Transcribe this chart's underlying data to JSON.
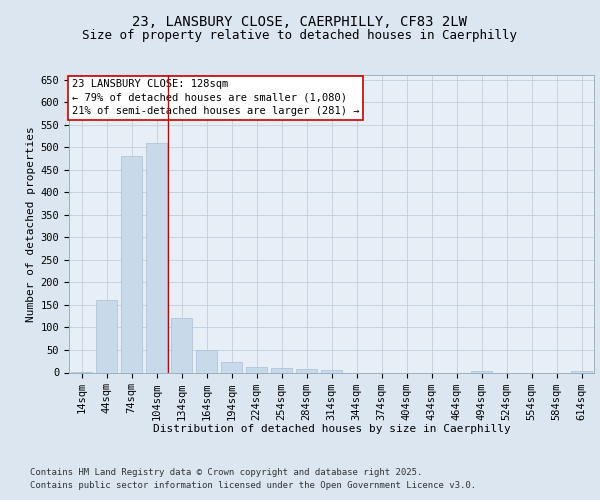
{
  "title_line1": "23, LANSBURY CLOSE, CAERPHILLY, CF83 2LW",
  "title_line2": "Size of property relative to detached houses in Caerphilly",
  "xlabel": "Distribution of detached houses by size in Caerphilly",
  "ylabel": "Number of detached properties",
  "categories": [
    "14sqm",
    "44sqm",
    "74sqm",
    "104sqm",
    "134sqm",
    "164sqm",
    "194sqm",
    "224sqm",
    "254sqm",
    "284sqm",
    "314sqm",
    "344sqm",
    "374sqm",
    "404sqm",
    "434sqm",
    "464sqm",
    "494sqm",
    "524sqm",
    "554sqm",
    "584sqm",
    "614sqm"
  ],
  "values": [
    2,
    160,
    480,
    510,
    120,
    50,
    23,
    13,
    11,
    8,
    5,
    0,
    0,
    0,
    0,
    0,
    3,
    0,
    0,
    0,
    3
  ],
  "bar_color": "#c8daea",
  "bar_edge_color": "#a8c0d4",
  "vline_x": 3.47,
  "vline_color": "#cc0000",
  "ylim": [
    0,
    660
  ],
  "yticks": [
    0,
    50,
    100,
    150,
    200,
    250,
    300,
    350,
    400,
    450,
    500,
    550,
    600,
    650
  ],
  "annotation_text": "23 LANSBURY CLOSE: 128sqm\n← 79% of detached houses are smaller (1,080)\n21% of semi-detached houses are larger (281) →",
  "annotation_box_color": "#ffffff",
  "annotation_box_edge": "#cc0000",
  "bg_color": "#dce6f0",
  "plot_bg_color": "#e8eef6",
  "footer_line1": "Contains HM Land Registry data © Crown copyright and database right 2025.",
  "footer_line2": "Contains public sector information licensed under the Open Government Licence v3.0.",
  "title_fontsize": 10,
  "subtitle_fontsize": 9,
  "axis_label_fontsize": 8,
  "tick_fontsize": 7.5,
  "annotation_fontsize": 7.5,
  "footer_fontsize": 6.5
}
